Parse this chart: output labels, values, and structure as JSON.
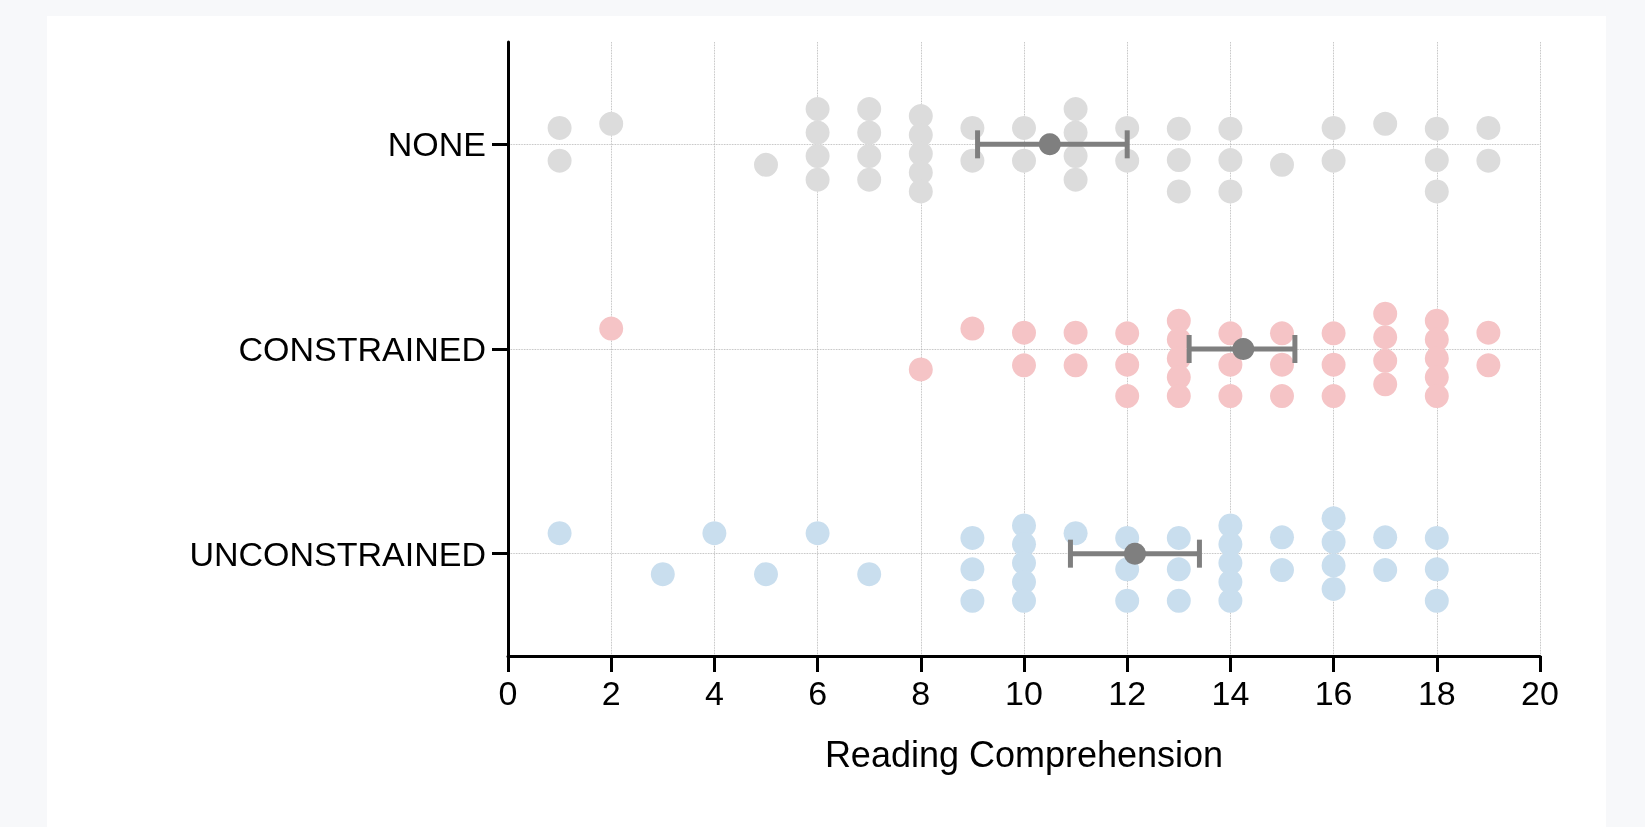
{
  "chart_data": {
    "type": "scatter",
    "orientation": "horizontal",
    "categories": [
      "NONE",
      "CONSTRAINED",
      "UNCONSTRAINED"
    ],
    "xlabel": "Reading Comprehension",
    "xlim": [
      0,
      20
    ],
    "xticks": [
      0,
      2,
      4,
      6,
      8,
      10,
      12,
      14,
      16,
      18,
      20
    ],
    "grid": true,
    "marker": "circle",
    "series": [
      {
        "color": "#dcdcdc",
        "x": [
          "NONE",
          "NONE",
          "NONE",
          "NONE",
          "NONE",
          "NONE",
          "NONE",
          "NONE",
          "NONE",
          "NONE",
          "NONE",
          "NONE",
          "NONE",
          "NONE",
          "NONE",
          "NONE",
          "NONE",
          "NONE",
          "NONE",
          "NONE",
          "NONE",
          "NONE",
          "NONE",
          "NONE",
          "NONE",
          "NONE",
          "NONE",
          "NONE",
          "NONE",
          "NONE",
          "NONE",
          "NONE",
          "NONE",
          "NONE",
          "NONE",
          "NONE",
          "NONE",
          "NONE",
          "NONE",
          "NONE",
          "NONE",
          "NONE"
        ],
        "values": [
          1,
          1,
          2,
          5,
          6,
          6,
          6,
          6,
          7,
          7,
          7,
          7,
          8,
          8,
          8,
          8,
          8,
          9,
          9,
          10,
          10,
          11,
          11,
          11,
          11,
          12,
          12,
          13,
          13,
          13,
          14,
          14,
          14,
          15,
          16,
          16,
          17,
          18,
          18,
          18,
          19,
          19
        ]
      },
      {
        "color": "#f5c4c6",
        "x": [
          "CONSTRAINED",
          "CONSTRAINED",
          "CONSTRAINED",
          "CONSTRAINED",
          "CONSTRAINED",
          "CONSTRAINED",
          "CONSTRAINED",
          "CONSTRAINED",
          "CONSTRAINED",
          "CONSTRAINED",
          "CONSTRAINED",
          "CONSTRAINED",
          "CONSTRAINED",
          "CONSTRAINED",
          "CONSTRAINED",
          "CONSTRAINED",
          "CONSTRAINED",
          "CONSTRAINED",
          "CONSTRAINED",
          "CONSTRAINED",
          "CONSTRAINED",
          "CONSTRAINED",
          "CONSTRAINED",
          "CONSTRAINED",
          "CONSTRAINED",
          "CONSTRAINED",
          "CONSTRAINED",
          "CONSTRAINED",
          "CONSTRAINED",
          "CONSTRAINED",
          "CONSTRAINED",
          "CONSTRAINED",
          "CONSTRAINED",
          "CONSTRAINED",
          "CONSTRAINED"
        ],
        "values": [
          2,
          8,
          9,
          10,
          10,
          11,
          11,
          12,
          12,
          12,
          13,
          13,
          13,
          13,
          13,
          14,
          14,
          14,
          15,
          15,
          15,
          16,
          16,
          16,
          17,
          17,
          17,
          17,
          18,
          18,
          18,
          18,
          18,
          19,
          19
        ]
      },
      {
        "color": "#c9deee",
        "x": [
          "UNCONSTRAINED",
          "UNCONSTRAINED",
          "UNCONSTRAINED",
          "UNCONSTRAINED",
          "UNCONSTRAINED",
          "UNCONSTRAINED",
          "UNCONSTRAINED",
          "UNCONSTRAINED",
          "UNCONSTRAINED",
          "UNCONSTRAINED",
          "UNCONSTRAINED",
          "UNCONSTRAINED",
          "UNCONSTRAINED",
          "UNCONSTRAINED",
          "UNCONSTRAINED",
          "UNCONSTRAINED",
          "UNCONSTRAINED",
          "UNCONSTRAINED",
          "UNCONSTRAINED",
          "UNCONSTRAINED",
          "UNCONSTRAINED",
          "UNCONSTRAINED",
          "UNCONSTRAINED",
          "UNCONSTRAINED",
          "UNCONSTRAINED",
          "UNCONSTRAINED",
          "UNCONSTRAINED",
          "UNCONSTRAINED",
          "UNCONSTRAINED",
          "UNCONSTRAINED",
          "UNCONSTRAINED",
          "UNCONSTRAINED",
          "UNCONSTRAINED",
          "UNCONSTRAINED",
          "UNCONSTRAINED",
          "UNCONSTRAINED",
          "UNCONSTRAINED"
        ],
        "values": [
          1,
          3,
          4,
          5,
          6,
          7,
          9,
          9,
          9,
          10,
          10,
          10,
          10,
          10,
          11,
          12,
          12,
          12,
          13,
          13,
          13,
          14,
          14,
          14,
          14,
          14,
          15,
          15,
          16,
          16,
          16,
          16,
          17,
          17,
          18,
          18,
          18
        ]
      },
      {
        "color": "#7f7f7f",
        "x": [
          "NONE",
          "CONSTRAINED",
          "UNCONSTRAINED"
        ],
        "values": [
          10.5,
          14.25,
          12.15
        ],
        "errors": [
          [
            9.1,
            12.0
          ],
          [
            13.2,
            15.25
          ],
          [
            10.9,
            13.4
          ]
        ]
      }
    ]
  }
}
